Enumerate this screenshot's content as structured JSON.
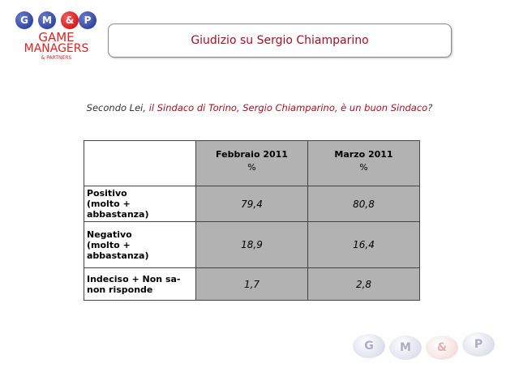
{
  "logo": {
    "balls": [
      "G",
      "M",
      "&",
      "P"
    ],
    "line1": "GAME",
    "line2": "MANAGERS",
    "line3": "& PARTNERS"
  },
  "header": {
    "title": "Giudizio su Sergio Chiamparino"
  },
  "question": {
    "lead": "Secondo Lei, ",
    "emphasis": "il Sindaco di Torino, Sergio Chiamparino, è un buon Sindaco",
    "end": "?"
  },
  "table": {
    "columns": [
      {
        "name": "Febbraio 2011",
        "unit": "%"
      },
      {
        "name": "Marzo 2011",
        "unit": "%"
      }
    ],
    "rows": [
      {
        "label": [
          "Positivo",
          "(molto + abbastanza)"
        ],
        "values": [
          "79,4",
          "80,8"
        ]
      },
      {
        "label": [
          "Negativo",
          "(molto + abbastanza)"
        ],
        "values": [
          "18,9",
          "16,4"
        ]
      },
      {
        "label": [
          "Indeciso + Non sa-",
          "non risponde"
        ],
        "values": [
          "1,7",
          "2,8"
        ]
      }
    ]
  },
  "footer_logo": {
    "balls": [
      "G",
      "M",
      "&",
      "P"
    ]
  }
}
